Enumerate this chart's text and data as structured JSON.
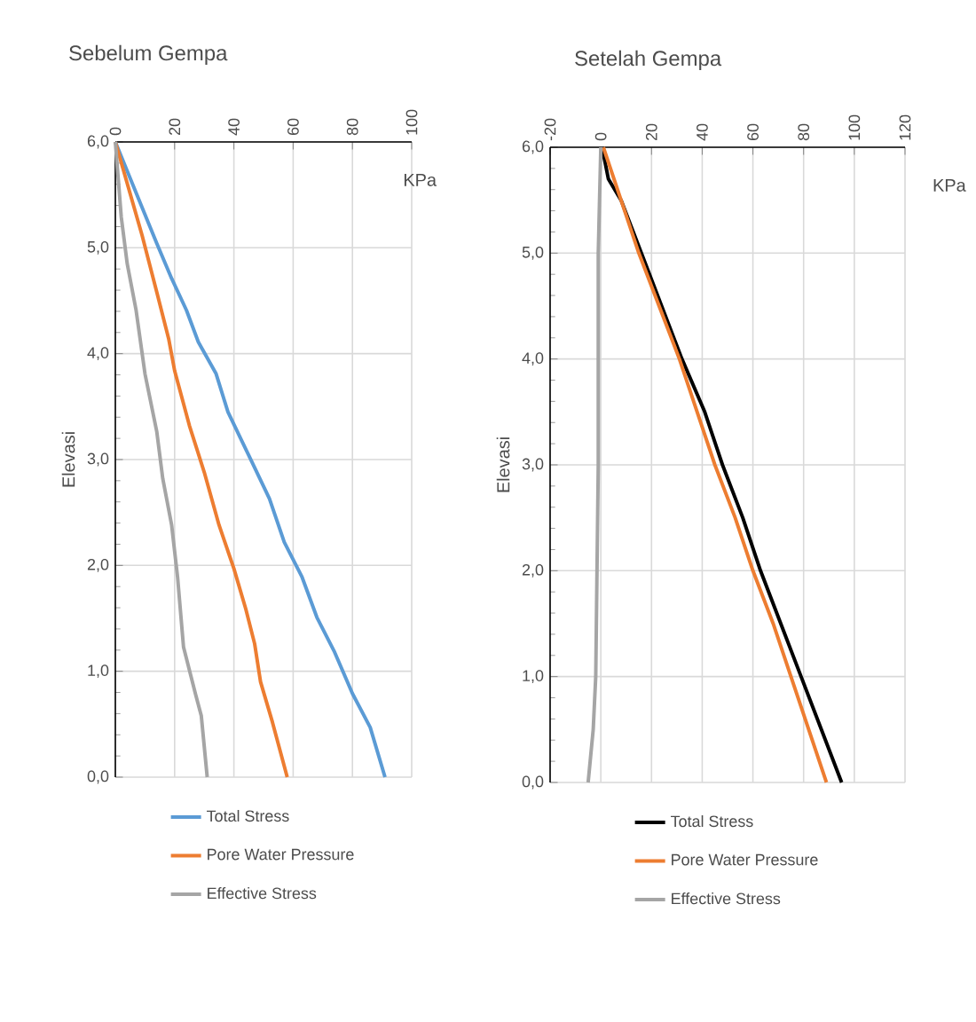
{
  "chart_data": [
    {
      "type": "line",
      "title": "Sebelum Gempa",
      "ylabel": "Elevasi",
      "annotations": [
        "KPa"
      ],
      "xlim": [
        0,
        100
      ],
      "xticks": [
        0,
        20,
        40,
        60,
        80,
        100
      ],
      "ylim": [
        0,
        6
      ],
      "yticks": [
        {
          "value": 0,
          "label": "0,0"
        },
        {
          "value": 1,
          "label": "1,0"
        },
        {
          "value": 2,
          "label": "2,0"
        },
        {
          "value": 3,
          "label": "3,0"
        },
        {
          "value": 4,
          "label": "4,0"
        },
        {
          "value": 5,
          "label": "5,0"
        },
        {
          "value": 6,
          "label": "6,0"
        }
      ],
      "grid": true,
      "legend": "bottom",
      "marker": "none",
      "line_style": "solid",
      "series": [
        {
          "name": "Total Stress",
          "color": "#5b9bd5",
          "x": [
            0,
            14,
            19,
            24,
            28,
            34,
            38,
            45,
            52,
            57,
            63,
            68,
            74,
            80,
            86,
            91
          ],
          "values": [
            6,
            5.04,
            4.71,
            4.41,
            4.11,
            3.81,
            3.45,
            3.04,
            2.63,
            2.22,
            1.89,
            1.51,
            1.18,
            0.79,
            0.47,
            0
          ]
        },
        {
          "name": "Pore Water Pressure",
          "color": "#ed7d31",
          "x": [
            0,
            9,
            14,
            18,
            20,
            25,
            30,
            35,
            40,
            44,
            47,
            49,
            53,
            58
          ],
          "values": [
            6,
            5.12,
            4.58,
            4.14,
            3.84,
            3.32,
            2.88,
            2.38,
            1.97,
            1.59,
            1.26,
            0.9,
            0.52,
            0
          ]
        },
        {
          "name": "Effective Stress",
          "color": "#a5a5a5",
          "x": [
            0,
            2,
            4,
            7,
            10,
            14,
            16,
            19,
            21,
            23,
            27,
            29,
            31
          ],
          "values": [
            6,
            5.29,
            4.85,
            4.41,
            3.81,
            3.26,
            2.82,
            2.38,
            1.89,
            1.23,
            0.79,
            0.58,
            0
          ]
        }
      ]
    },
    {
      "type": "line",
      "title": "Setelah Gempa",
      "ylabel": "Elevasi",
      "annotations": [
        "KPa"
      ],
      "xlim": [
        -20,
        120
      ],
      "xticks": [
        -20,
        0,
        20,
        40,
        60,
        80,
        100,
        120
      ],
      "ylim": [
        0,
        6
      ],
      "yticks": [
        {
          "value": 0,
          "label": "0,0"
        },
        {
          "value": 1,
          "label": "1,0"
        },
        {
          "value": 2,
          "label": "2,0"
        },
        {
          "value": 3,
          "label": "3,0"
        },
        {
          "value": 4,
          "label": "4,0"
        },
        {
          "value": 5,
          "label": "5,0"
        },
        {
          "value": 6,
          "label": "6,0"
        }
      ],
      "grid": true,
      "legend": "bottom",
      "marker": "none",
      "line_style": "solid",
      "series": [
        {
          "name": "Total Stress",
          "color": "#000000",
          "x": [
            0.5,
            3,
            8,
            16,
            24,
            32,
            41,
            48,
            56,
            63,
            71,
            79,
            87,
            95
          ],
          "values": [
            6,
            5.7,
            5.5,
            5,
            4.5,
            4,
            3.5,
            3,
            2.5,
            2,
            1.5,
            1,
            0.5,
            0
          ]
        },
        {
          "name": "Pore Water Pressure",
          "color": "#ed7d31",
          "x": [
            1,
            8,
            15,
            23,
            31,
            38,
            45,
            53,
            60,
            68,
            75,
            82,
            89
          ],
          "values": [
            6,
            5.5,
            5,
            4.5,
            4,
            3.5,
            3,
            2.5,
            2,
            1.5,
            1,
            0.5,
            0
          ]
        },
        {
          "name": "Effective Stress",
          "color": "#a5a5a5",
          "x": [
            0,
            -0.5,
            -1,
            -1,
            -1.5,
            -2,
            -3,
            -5
          ],
          "values": [
            6,
            5.5,
            5,
            3,
            2,
            1,
            0.5,
            0
          ]
        }
      ]
    }
  ]
}
